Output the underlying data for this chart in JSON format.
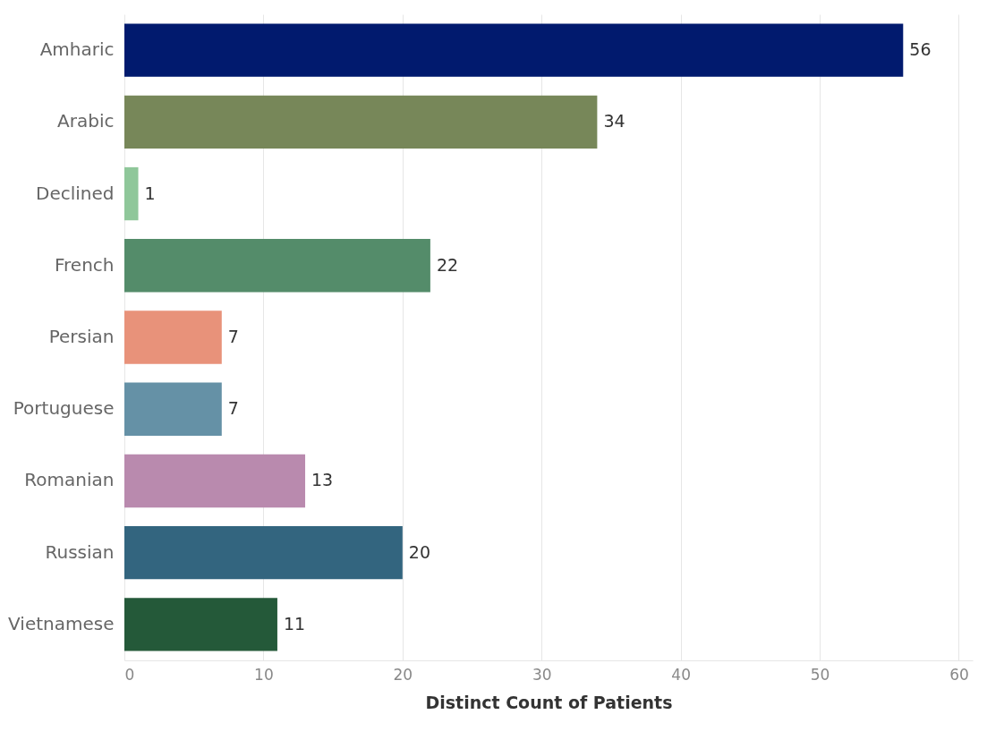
{
  "chart_data": {
    "type": "bar",
    "orientation": "horizontal",
    "xlabel": "Distinct Count of Patients",
    "categories": [
      "Amharic",
      "Arabic",
      "Declined",
      "French",
      "Persian",
      "Portuguese",
      "Romanian",
      "Russian",
      "Vietnamese"
    ],
    "values": [
      56,
      34,
      1,
      22,
      7,
      7,
      13,
      20,
      11
    ],
    "colors": [
      "#011a6e",
      "#778759",
      "#8fc79a",
      "#548c6a",
      "#e8927a",
      "#6591a6",
      "#b98aae",
      "#33657f",
      "#245939"
    ],
    "xlim": [
      0,
      61
    ],
    "xticks": [
      0,
      10,
      20,
      30,
      40,
      50,
      60
    ],
    "grid": "x",
    "data_labels": true
  }
}
